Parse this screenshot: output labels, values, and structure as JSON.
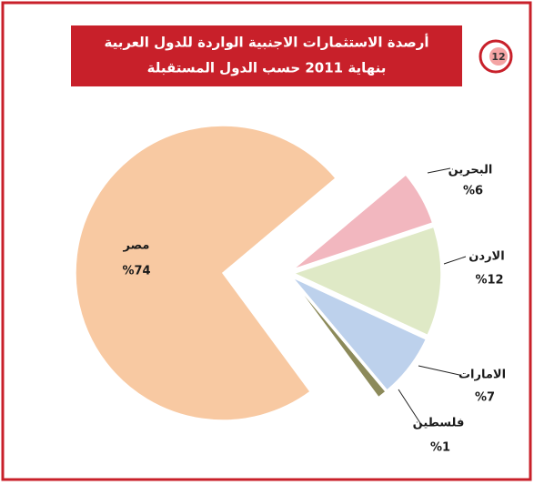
{
  "badge": "12",
  "chart_data": {
    "type": "pie",
    "title": [
      "أرصدة الاستثمارات الاجنبية الواردة للدول العربية",
      "بنهاية 2011 حسب الدول المستقبلة"
    ],
    "categories": [
      "البحرين",
      "الاردن",
      "الامارات",
      "فلسطين",
      "مصر"
    ],
    "values": [
      6,
      12,
      7,
      1,
      74
    ],
    "value_labels": [
      "%6",
      "%12",
      "%7",
      "%1",
      "%74"
    ],
    "colors": [
      "#f2b7bf",
      "#dfe9c6",
      "#bdd1ec",
      "#8c8a5a",
      "#f8c9a2"
    ]
  }
}
